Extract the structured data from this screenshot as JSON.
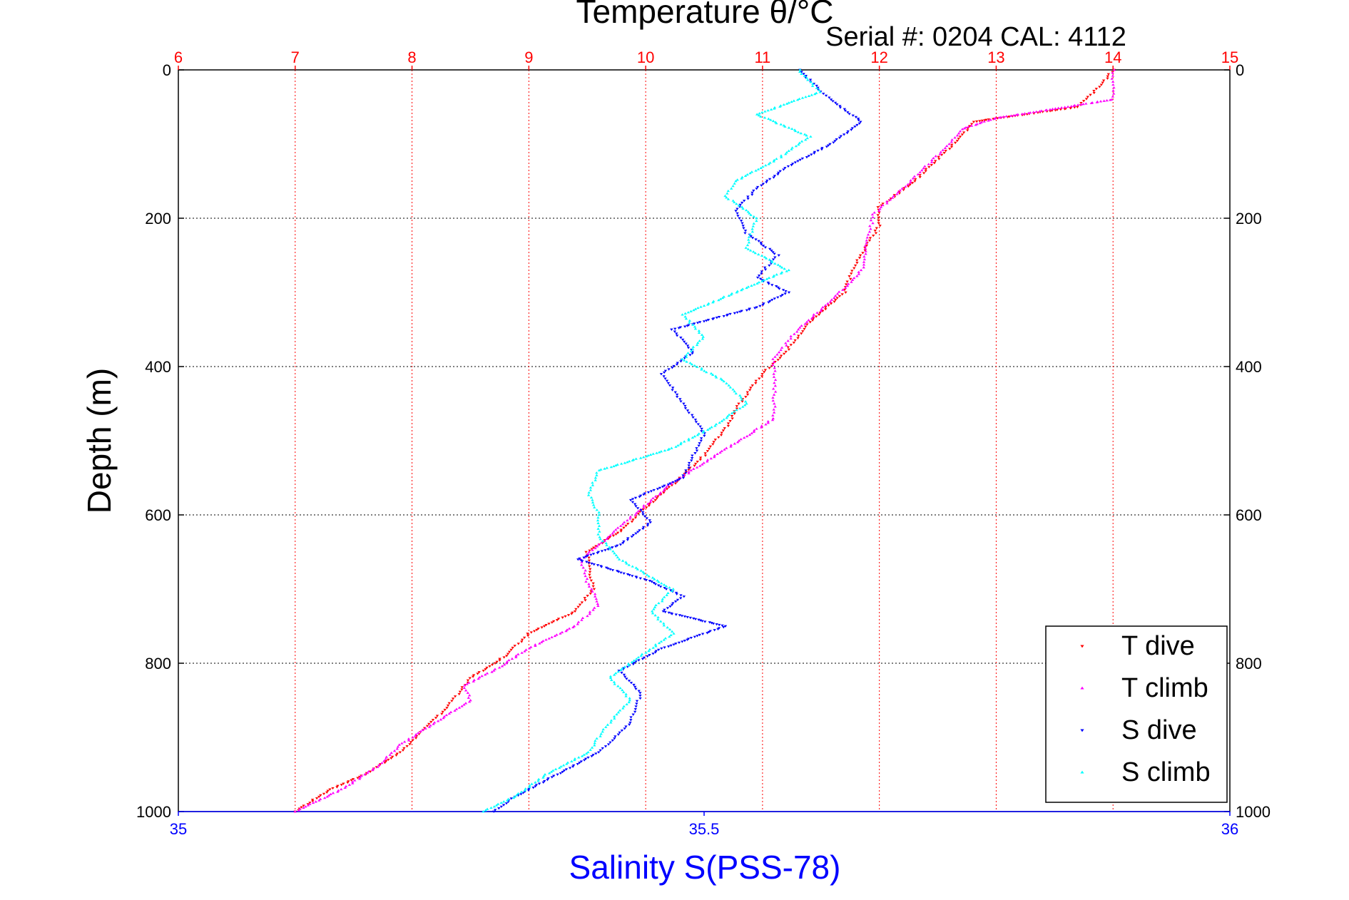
{
  "chart_data": {
    "type": "scatter",
    "title": "Temperature θ/°C",
    "subtitle": "Serial #: 0204  CAL: 4112",
    "ylabel": "Depth (m)",
    "xlabel": "Salinity S(PSS-78)",
    "y_axis": {
      "range": [
        0,
        1000
      ],
      "reversed": true,
      "ticks": [
        0,
        200,
        400,
        600,
        800,
        1000
      ],
      "tick_labels": [
        "0",
        "200",
        "400",
        "600",
        "800",
        "1000"
      ]
    },
    "x_top_axis": {
      "quantity": "temperature",
      "range": [
        6,
        15
      ],
      "ticks": [
        6,
        7,
        8,
        9,
        10,
        11,
        12,
        13,
        14,
        15
      ],
      "tick_labels": [
        "6",
        "7",
        "8",
        "9",
        "10",
        "11",
        "12",
        "13",
        "14",
        "15"
      ],
      "color": "#ff0000"
    },
    "x_bottom_axis": {
      "quantity": "salinity",
      "range": [
        35,
        36
      ],
      "ticks": [
        35,
        35.5,
        36
      ],
      "tick_labels": [
        "35",
        "35.5",
        "36"
      ],
      "color": "#0000ff"
    },
    "grid": true,
    "legend": {
      "position": "bottom-right",
      "entries": [
        "T dive",
        "T climb",
        "S dive",
        "S climb"
      ]
    },
    "series": [
      {
        "name": "T dive",
        "axis": "temperature",
        "color": "#ff0000",
        "marker": "triangle-down",
        "points": [
          [
            14.0,
            0
          ],
          [
            13.9,
            20
          ],
          [
            13.7,
            50
          ],
          [
            12.8,
            70
          ],
          [
            12.7,
            90
          ],
          [
            12.5,
            120
          ],
          [
            12.3,
            150
          ],
          [
            12.0,
            185
          ],
          [
            12.0,
            210
          ],
          [
            11.8,
            260
          ],
          [
            11.7,
            300
          ],
          [
            11.4,
            340
          ],
          [
            11.2,
            380
          ],
          [
            11.0,
            410
          ],
          [
            10.8,
            450
          ],
          [
            10.7,
            480
          ],
          [
            10.5,
            520
          ],
          [
            10.3,
            550
          ],
          [
            10.0,
            590
          ],
          [
            9.8,
            620
          ],
          [
            9.5,
            650
          ],
          [
            9.55,
            700
          ],
          [
            9.4,
            730
          ],
          [
            9.0,
            760
          ],
          [
            8.8,
            790
          ],
          [
            8.5,
            820
          ],
          [
            8.3,
            860
          ],
          [
            8.1,
            890
          ],
          [
            7.9,
            920
          ],
          [
            7.6,
            950
          ],
          [
            7.3,
            970
          ],
          [
            7.0,
            1000
          ]
        ]
      },
      {
        "name": "T climb",
        "axis": "temperature",
        "color": "#ff00ff",
        "marker": "triangle-up",
        "points": [
          [
            14.0,
            0
          ],
          [
            14.0,
            40
          ],
          [
            13.0,
            65
          ],
          [
            12.7,
            80
          ],
          [
            12.6,
            100
          ],
          [
            12.4,
            130
          ],
          [
            12.2,
            160
          ],
          [
            11.95,
            195
          ],
          [
            11.9,
            230
          ],
          [
            11.85,
            270
          ],
          [
            11.6,
            310
          ],
          [
            11.3,
            350
          ],
          [
            11.1,
            390
          ],
          [
            11.1,
            430
          ],
          [
            11.1,
            470
          ],
          [
            10.8,
            500
          ],
          [
            10.5,
            530
          ],
          [
            10.2,
            560
          ],
          [
            9.9,
            600
          ],
          [
            9.6,
            640
          ],
          [
            9.45,
            660
          ],
          [
            9.5,
            690
          ],
          [
            9.6,
            720
          ],
          [
            9.4,
            750
          ],
          [
            9.0,
            780
          ],
          [
            8.7,
            810
          ],
          [
            8.45,
            830
          ],
          [
            8.5,
            850
          ],
          [
            8.2,
            880
          ],
          [
            7.9,
            910
          ],
          [
            7.7,
            940
          ],
          [
            7.4,
            970
          ],
          [
            7.0,
            1000
          ]
        ]
      },
      {
        "name": "S dive",
        "axis": "salinity",
        "color": "#0000ff",
        "marker": "triangle-down",
        "points": [
          [
            35.59,
            0
          ],
          [
            35.62,
            40
          ],
          [
            35.65,
            70
          ],
          [
            35.62,
            100
          ],
          [
            35.58,
            130
          ],
          [
            35.55,
            160
          ],
          [
            35.53,
            190
          ],
          [
            35.54,
            220
          ],
          [
            35.57,
            250
          ],
          [
            35.55,
            280
          ],
          [
            35.58,
            300
          ],
          [
            35.55,
            320
          ],
          [
            35.47,
            350
          ],
          [
            35.49,
            380
          ],
          [
            35.46,
            410
          ],
          [
            35.48,
            450
          ],
          [
            35.5,
            490
          ],
          [
            35.49,
            520
          ],
          [
            35.48,
            550
          ],
          [
            35.43,
            580
          ],
          [
            35.45,
            610
          ],
          [
            35.42,
            640
          ],
          [
            35.38,
            660
          ],
          [
            35.45,
            690
          ],
          [
            35.48,
            710
          ],
          [
            35.46,
            730
          ],
          [
            35.52,
            750
          ],
          [
            35.46,
            780
          ],
          [
            35.42,
            810
          ],
          [
            35.44,
            840
          ],
          [
            35.43,
            880
          ],
          [
            35.4,
            920
          ],
          [
            35.36,
            950
          ],
          [
            35.32,
            980
          ],
          [
            35.3,
            1000
          ]
        ]
      },
      {
        "name": "S climb",
        "axis": "salinity",
        "color": "#00ffff",
        "marker": "triangle-up",
        "points": [
          [
            35.59,
            0
          ],
          [
            35.61,
            30
          ],
          [
            35.55,
            60
          ],
          [
            35.6,
            90
          ],
          [
            35.57,
            120
          ],
          [
            35.53,
            150
          ],
          [
            35.52,
            170
          ],
          [
            35.55,
            200
          ],
          [
            35.54,
            240
          ],
          [
            35.58,
            270
          ],
          [
            35.53,
            300
          ],
          [
            35.48,
            330
          ],
          [
            35.5,
            360
          ],
          [
            35.48,
            390
          ],
          [
            35.52,
            420
          ],
          [
            35.54,
            450
          ],
          [
            35.51,
            480
          ],
          [
            35.47,
            510
          ],
          [
            35.4,
            540
          ],
          [
            35.39,
            570
          ],
          [
            35.4,
            600
          ],
          [
            35.4,
            630
          ],
          [
            35.42,
            660
          ],
          [
            35.47,
            700
          ],
          [
            35.45,
            730
          ],
          [
            35.47,
            760
          ],
          [
            35.44,
            790
          ],
          [
            35.41,
            820
          ],
          [
            35.43,
            850
          ],
          [
            35.41,
            880
          ],
          [
            35.39,
            920
          ],
          [
            35.35,
            950
          ],
          [
            35.32,
            980
          ],
          [
            35.29,
            1000
          ]
        ]
      }
    ]
  }
}
